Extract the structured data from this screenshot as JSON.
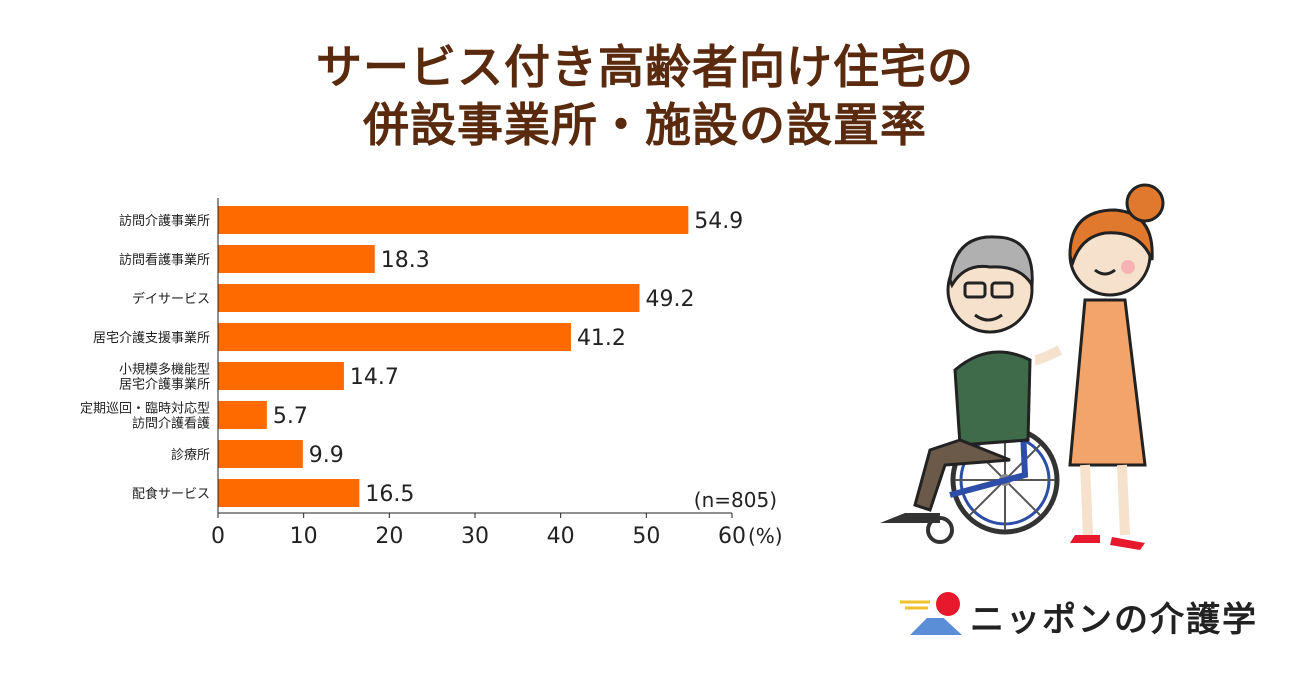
{
  "title": {
    "line1": "サービス付き高齢者向け住宅の",
    "line2": "併設事業所・施設の設置率"
  },
  "chart_data": {
    "type": "bar",
    "orientation": "horizontal",
    "categories": [
      "訪問介護事業所",
      "訪問看護事業所",
      "デイサービス",
      "居宅介護支援事業所",
      "小規模多機能型\n居宅介護事業所",
      "定期巡回・臨時対応型\n訪問介護看護",
      "診療所",
      "配食サービス"
    ],
    "values": [
      54.9,
      18.3,
      49.2,
      41.2,
      14.7,
      5.7,
      9.9,
      16.5
    ],
    "xlim": [
      0,
      60
    ],
    "xticks": [
      0,
      10,
      20,
      30,
      40,
      50,
      60
    ],
    "xunit": "(%)",
    "note": "(n=805)",
    "bar_color": "#ff6a00",
    "grid": false
  },
  "logo": {
    "text": "ニッポンの介護学"
  },
  "colors": {
    "title": "#5a2a0f",
    "bar": "#ff6a00",
    "logo_sun": "#e8192c",
    "logo_mountain": "#5a8fd8"
  }
}
